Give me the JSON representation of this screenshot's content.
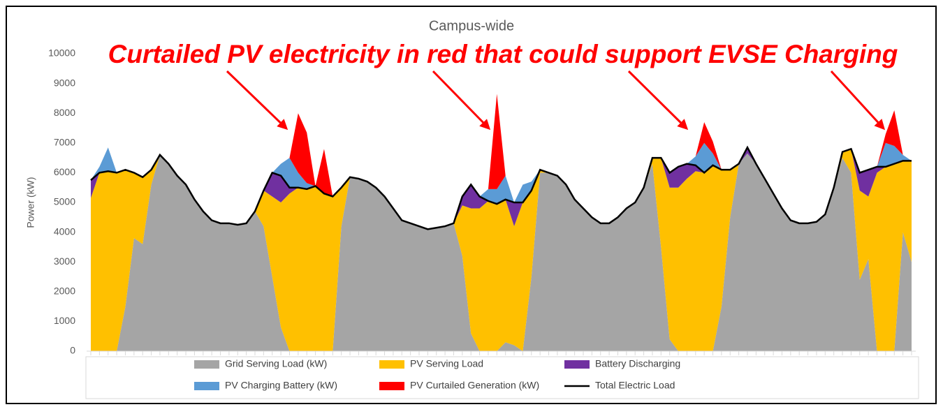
{
  "chart_data": {
    "type": "area",
    "title": "Campus-wide",
    "annotation": "Curtailed PV electricity in red that could support EVSE Charging",
    "y_label": "Power (kW)",
    "categories": [
      null,
      null,
      null,
      null,
      null,
      null,
      null,
      null,
      null,
      null,
      null,
      null,
      null,
      null,
      null,
      null,
      null,
      null,
      null,
      null,
      null,
      null,
      null,
      null,
      null,
      null,
      null,
      null,
      null,
      null,
      null,
      null,
      null,
      null,
      null,
      null,
      null,
      null,
      null,
      null,
      null,
      null,
      null,
      null,
      null,
      null,
      null,
      null,
      null,
      null,
      null,
      null,
      null,
      null,
      null,
      null,
      null,
      null,
      null,
      null,
      null,
      null,
      null,
      null,
      null,
      null,
      null,
      null,
      null,
      null,
      null,
      null,
      null,
      null,
      null,
      null,
      null,
      null,
      null,
      null,
      null,
      null,
      null,
      null,
      null,
      null,
      null,
      null,
      null,
      null,
      null,
      null,
      null,
      null,
      null,
      null
    ],
    "stacked": true,
    "series": [
      {
        "name": "Grid Serving Load (kW)",
        "color": "#a5a5a5",
        "values": [
          0,
          0,
          0,
          0,
          1500,
          3800,
          3600,
          5600,
          6600,
          6300,
          5900,
          5600,
          5100,
          4700,
          4400,
          4300,
          4300,
          4250,
          4300,
          4700,
          4200,
          2500,
          800,
          0,
          0,
          0,
          0,
          0,
          0,
          4200,
          5850,
          5800,
          5700,
          5500,
          5200,
          4800,
          4400,
          4300,
          4200,
          4100,
          4150,
          4200,
          4300,
          3200,
          600,
          0,
          0,
          0,
          300,
          200,
          0,
          2500,
          6000,
          6000,
          5900,
          5600,
          5100,
          4800,
          4500,
          4300,
          4300,
          4500,
          4800,
          5000,
          5500,
          6300,
          3500,
          400,
          0,
          0,
          0,
          0,
          0,
          1500,
          4500,
          6300,
          6650,
          6300,
          5800,
          5300,
          4800,
          4400,
          4300,
          4300,
          4350,
          4600,
          5500,
          6500,
          6000,
          2400,
          3100,
          0,
          0,
          0,
          4000,
          3000
        ]
      },
      {
        "name": "PV Serving Load",
        "color": "#ffc000",
        "values": [
          5150,
          6000,
          6050,
          6000,
          4600,
          2200,
          2250,
          500,
          0,
          0,
          0,
          0,
          0,
          0,
          0,
          0,
          0,
          0,
          0,
          0,
          1200,
          2700,
          4200,
          5300,
          5500,
          5450,
          5550,
          5300,
          5200,
          1300,
          0,
          0,
          0,
          0,
          0,
          0,
          0,
          0,
          0,
          0,
          0,
          0,
          0,
          1700,
          4200,
          4800,
          5050,
          4950,
          4800,
          4000,
          5000,
          2900,
          100,
          0,
          0,
          0,
          0,
          0,
          0,
          0,
          0,
          0,
          0,
          0,
          0,
          200,
          3000,
          5100,
          5500,
          5800,
          6050,
          6000,
          6250,
          4600,
          1600,
          0,
          0,
          0,
          0,
          0,
          0,
          0,
          0,
          0,
          0,
          0,
          0,
          200,
          800,
          3000,
          2100,
          6000,
          6200,
          6300,
          2400,
          3400
        ]
      },
      {
        "name": "Battery Discharging",
        "color": "#7030a0",
        "values": [
          600,
          0,
          0,
          0,
          0,
          0,
          0,
          0,
          0,
          0,
          0,
          0,
          0,
          0,
          0,
          0,
          0,
          0,
          0,
          0,
          0,
          800,
          900,
          200,
          0,
          0,
          0,
          0,
          0,
          0,
          0,
          0,
          0,
          0,
          0,
          0,
          0,
          0,
          0,
          0,
          0,
          0,
          0,
          300,
          800,
          400,
          0,
          0,
          0,
          800,
          0,
          0,
          0,
          0,
          0,
          0,
          0,
          0,
          0,
          0,
          0,
          0,
          0,
          0,
          0,
          0,
          0,
          500,
          700,
          500,
          200,
          0,
          0,
          0,
          0,
          0,
          200,
          0,
          0,
          0,
          0,
          0,
          0,
          0,
          0,
          0,
          0,
          0,
          0,
          600,
          900,
          200,
          0,
          0,
          0,
          0
        ]
      },
      {
        "name": "PV Charging Battery (kW)",
        "color": "#5b9bd5",
        "values": [
          0,
          200,
          800,
          0,
          0,
          0,
          0,
          0,
          0,
          0,
          0,
          0,
          0,
          0,
          0,
          0,
          0,
          0,
          0,
          0,
          0,
          0,
          400,
          1000,
          500,
          200,
          0,
          0,
          0,
          0,
          0,
          0,
          0,
          0,
          0,
          0,
          0,
          0,
          0,
          0,
          0,
          0,
          0,
          0,
          0,
          0,
          400,
          500,
          800,
          0,
          600,
          300,
          0,
          0,
          0,
          0,
          0,
          0,
          0,
          0,
          0,
          0,
          0,
          0,
          0,
          0,
          0,
          0,
          0,
          0,
          300,
          1000,
          400,
          0,
          0,
          0,
          0,
          0,
          0,
          0,
          0,
          0,
          0,
          0,
          0,
          0,
          0,
          0,
          0,
          0,
          0,
          0,
          800,
          600,
          200,
          0
        ]
      },
      {
        "name": "PV Curtailed Generation (kW)",
        "color": "#ff0000",
        "values": [
          0,
          0,
          0,
          0,
          0,
          0,
          0,
          0,
          0,
          0,
          0,
          0,
          0,
          0,
          0,
          0,
          0,
          0,
          0,
          0,
          0,
          0,
          0,
          0,
          2000,
          1700,
          0,
          1500,
          0,
          0,
          0,
          0,
          0,
          0,
          0,
          0,
          0,
          0,
          0,
          0,
          0,
          0,
          0,
          0,
          0,
          0,
          0,
          3200,
          0,
          0,
          0,
          0,
          0,
          0,
          0,
          0,
          0,
          0,
          0,
          0,
          0,
          0,
          0,
          0,
          0,
          0,
          0,
          0,
          0,
          0,
          0,
          700,
          400,
          0,
          0,
          0,
          0,
          0,
          0,
          0,
          0,
          0,
          0,
          0,
          0,
          0,
          0,
          0,
          0,
          0,
          0,
          0,
          300,
          1200,
          0,
          0
        ]
      },
      {
        "name": "Total Electric Load",
        "color": "#000000",
        "type": "line",
        "values": [
          5750,
          6000,
          6050,
          6000,
          6100,
          6000,
          5850,
          6100,
          6600,
          6300,
          5900,
          5600,
          5100,
          4700,
          4400,
          4300,
          4300,
          4250,
          4300,
          4700,
          5400,
          6000,
          5900,
          5500,
          5500,
          5450,
          5550,
          5300,
          5200,
          5500,
          5850,
          5800,
          5700,
          5500,
          5200,
          4800,
          4400,
          4300,
          4200,
          4100,
          4150,
          4200,
          4300,
          5200,
          5600,
          5200,
          5050,
          4950,
          5100,
          5000,
          5000,
          5400,
          6100,
          6000,
          5900,
          5600,
          5100,
          4800,
          4500,
          4300,
          4300,
          4500,
          4800,
          5000,
          5500,
          6500,
          6500,
          6000,
          6200,
          6300,
          6250,
          6000,
          6250,
          6100,
          6100,
          6300,
          6850,
          6300,
          5800,
          5300,
          4800,
          4400,
          4300,
          4300,
          4350,
          4600,
          5500,
          6700,
          6800,
          6000,
          6100,
          6200,
          6200,
          6300,
          6400,
          6400
        ]
      }
    ],
    "ylim": [
      0,
      10000
    ],
    "yticks": [
      0,
      1000,
      2000,
      3000,
      4000,
      5000,
      6000,
      7000,
      8000,
      9000,
      10000
    ],
    "grid": false,
    "legend": "bottom"
  }
}
